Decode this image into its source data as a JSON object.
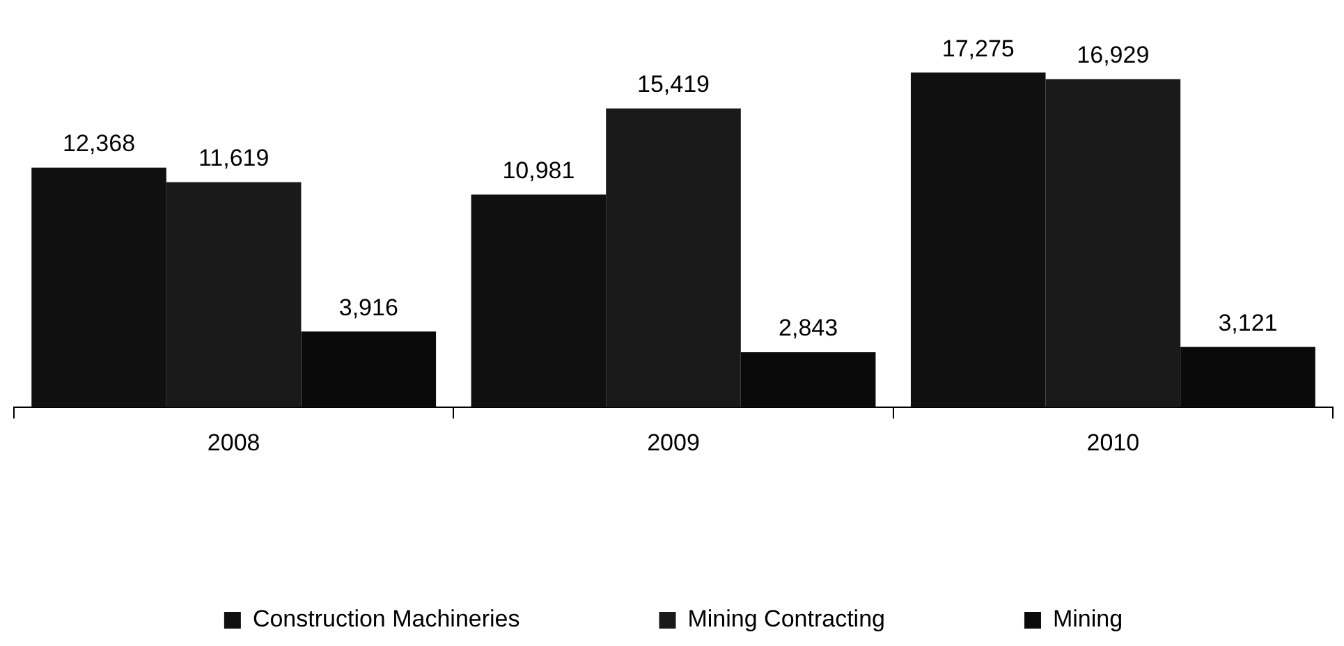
{
  "chart_data": {
    "type": "bar",
    "categories": [
      "2008",
      "2009",
      "2010"
    ],
    "series": [
      {
        "name": "Construction Machineries",
        "color": "#101010",
        "values": [
          12368,
          10981,
          17275
        ],
        "value_labels": [
          "12,368",
          "10,981",
          "17,275"
        ]
      },
      {
        "name": "Mining Contracting",
        "color": "#1a1a1a",
        "values": [
          11619,
          15419,
          16929
        ],
        "value_labels": [
          "11,619",
          "15,419",
          "16,929"
        ]
      },
      {
        "name": "Mining",
        "color": "#0a0a0a",
        "values": [
          3916,
          2843,
          3121
        ],
        "value_labels": [
          "3,916",
          "2,843",
          "3,121"
        ]
      }
    ],
    "legend": "bottom",
    "grid": false
  }
}
